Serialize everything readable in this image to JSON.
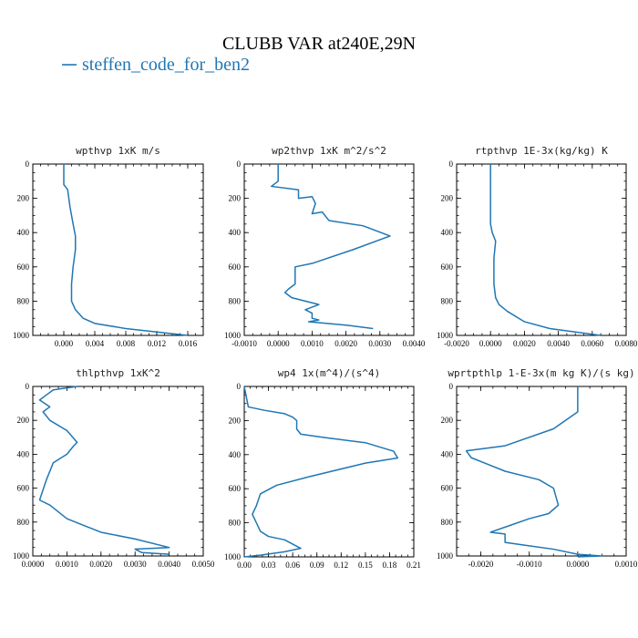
{
  "figure": {
    "title": "CLUBB VAR at240E,29N",
    "legend": {
      "label": "steffen_code_for_ben2",
      "color": "#1f77b4"
    }
  },
  "chart_data": [
    {
      "type": "line",
      "title": "wpthvp  1xK m/s",
      "xlim": [
        -0.004,
        0.018
      ],
      "ylim": [
        1000,
        0
      ],
      "x_ticks": [
        "0.000",
        "0.004",
        "0.008",
        "0.012",
        "0.016"
      ],
      "x_tick_values": [
        0,
        0.004,
        0.008,
        0.012,
        0.016
      ],
      "y_ticks": [
        "0",
        "200",
        "400",
        "600",
        "800",
        "1000"
      ],
      "y_tick_values": [
        0,
        200,
        400,
        600,
        800,
        1000
      ],
      "series": [
        {
          "x": [
            0.0,
            0.0,
            0.0005,
            0.0008,
            0.0012,
            0.0015,
            0.0015,
            0.0012,
            0.001,
            0.001,
            0.0015,
            0.0025,
            0.004,
            0.008,
            0.012,
            0.016
          ],
          "y": [
            0,
            120,
            150,
            250,
            350,
            420,
            500,
            600,
            700,
            800,
            850,
            900,
            930,
            960,
            980,
            1000
          ]
        }
      ]
    },
    {
      "type": "line",
      "title": "wp2thvp  1xK m^2/s^2",
      "xlim": [
        -0.001,
        0.004
      ],
      "ylim": [
        1000,
        0
      ],
      "x_ticks": [
        "-0.0010",
        "0.0000",
        "0.0010",
        "0.0020",
        "0.0030",
        "0.0040"
      ],
      "x_tick_values": [
        -0.001,
        0,
        0.001,
        0.002,
        0.003,
        0.004
      ],
      "y_ticks": [
        "0",
        "200",
        "400",
        "600",
        "800",
        "1000"
      ],
      "y_tick_values": [
        0,
        200,
        400,
        600,
        800,
        1000
      ],
      "series": [
        {
          "x": [
            0.0,
            0.0,
            -0.0002,
            0.0006,
            0.0006,
            0.001,
            0.0011,
            0.001,
            0.0013,
            0.0015,
            0.0025,
            0.0033,
            0.0022,
            0.001,
            0.0005,
            0.0005,
            0.0003,
            0.0002,
            0.0004,
            0.0012,
            0.0008,
            0.001,
            0.001,
            0.0012,
            0.0009,
            0.002,
            0.0028
          ],
          "y": [
            0,
            100,
            130,
            150,
            200,
            190,
            230,
            290,
            280,
            330,
            360,
            420,
            500,
            580,
            600,
            700,
            730,
            750,
            780,
            820,
            850,
            870,
            900,
            910,
            920,
            940,
            960
          ]
        }
      ]
    },
    {
      "type": "line",
      "title": "rtpthvp  1E-3x(kg/kg) K",
      "xlim": [
        -0.002,
        0.008
      ],
      "ylim": [
        1000,
        0
      ],
      "x_ticks": [
        "-0.0020",
        "0.0000",
        "0.0020",
        "0.0040",
        "0.0060",
        "0.0080"
      ],
      "x_tick_values": [
        -0.002,
        0,
        0.002,
        0.004,
        0.006,
        0.008
      ],
      "y_ticks": [
        "0",
        "200",
        "400",
        "600",
        "800",
        "1000"
      ],
      "y_tick_values": [
        0,
        200,
        400,
        600,
        800,
        1000
      ],
      "series": [
        {
          "x": [
            0.0,
            0.0,
            0.0001,
            0.0003,
            0.0002,
            0.0002,
            0.0003,
            0.0005,
            0.001,
            0.002,
            0.0035,
            0.005,
            0.0065
          ],
          "y": [
            0,
            350,
            400,
            450,
            550,
            700,
            780,
            820,
            860,
            920,
            960,
            980,
            1000
          ]
        }
      ]
    },
    {
      "type": "line",
      "title": "thlpthvp  1xK^2",
      "xlim": [
        0.0,
        0.005
      ],
      "ylim": [
        1000,
        0
      ],
      "x_ticks": [
        "0.0000",
        "0.0010",
        "0.0020",
        "0.0030",
        "0.0040",
        "0.0050"
      ],
      "x_tick_values": [
        0,
        0.001,
        0.002,
        0.003,
        0.004,
        0.005
      ],
      "y_ticks": [
        "0",
        "200",
        "400",
        "600",
        "800",
        "1000"
      ],
      "y_tick_values": [
        0,
        200,
        400,
        600,
        800,
        1000
      ],
      "series": [
        {
          "x": [
            0.0013,
            0.0006,
            0.0004,
            0.0002,
            0.0005,
            0.0003,
            0.0005,
            0.001,
            0.0013,
            0.0012,
            0.001,
            0.0006,
            0.0004,
            0.0002,
            0.0005,
            0.001,
            0.0015,
            0.002,
            0.003,
            0.004,
            0.003,
            0.0032,
            0.004
          ],
          "y": [
            0,
            20,
            50,
            80,
            120,
            150,
            200,
            260,
            330,
            350,
            400,
            450,
            550,
            670,
            700,
            780,
            820,
            860,
            900,
            950,
            960,
            980,
            990
          ]
        }
      ]
    },
    {
      "type": "line",
      "title": "wp4  1x(m^4)/(s^4)",
      "xlim": [
        0.0,
        0.21
      ],
      "ylim": [
        1000,
        0
      ],
      "x_ticks": [
        "0.00",
        "0.03",
        "0.06",
        "0.09",
        "0.12",
        "0.15",
        "0.18",
        "0.21"
      ],
      "x_tick_values": [
        0,
        0.03,
        0.06,
        0.09,
        0.12,
        0.15,
        0.18,
        0.21
      ],
      "y_ticks": [
        "0",
        "200",
        "400",
        "600",
        "800",
        "1000"
      ],
      "y_tick_values": [
        0,
        200,
        400,
        600,
        800,
        1000
      ],
      "series": [
        {
          "x": [
            0.0,
            0.005,
            0.025,
            0.05,
            0.06,
            0.065,
            0.065,
            0.07,
            0.1,
            0.15,
            0.185,
            0.19,
            0.15,
            0.08,
            0.04,
            0.02,
            0.015,
            0.01,
            0.015,
            0.02,
            0.03,
            0.05,
            0.07,
            0.05,
            0.02,
            0.0
          ],
          "y": [
            0,
            120,
            140,
            160,
            180,
            200,
            250,
            280,
            300,
            330,
            380,
            420,
            450,
            530,
            580,
            630,
            700,
            750,
            800,
            850,
            880,
            900,
            950,
            970,
            990,
            1000
          ]
        }
      ]
    },
    {
      "type": "line",
      "title": "wprtpthlp  1-E-3x(m kg K)/(s kg)",
      "xlim": [
        -0.0025,
        0.001
      ],
      "ylim": [
        1000,
        0
      ],
      "x_ticks": [
        "-0.0020",
        "-0.0010",
        "0.0000",
        "0.0010"
      ],
      "x_tick_values": [
        -0.002,
        -0.001,
        0,
        0.001
      ],
      "y_ticks": [
        "0",
        "200",
        "400",
        "600",
        "800",
        "1000"
      ],
      "y_tick_values": [
        0,
        200,
        400,
        600,
        800,
        1000
      ],
      "series": [
        {
          "x": [
            0.0,
            0.0,
            -0.0005,
            -0.0015,
            -0.0023,
            -0.0022,
            -0.0015,
            -0.0008,
            -0.0005,
            -0.0004,
            -0.0006,
            -0.001,
            -0.0014,
            -0.0018,
            -0.0015,
            -0.0015,
            -0.001,
            -0.0005,
            0.0,
            0.0005,
            0.0
          ],
          "y": [
            0,
            150,
            250,
            350,
            380,
            420,
            500,
            550,
            600,
            700,
            750,
            780,
            820,
            860,
            870,
            920,
            940,
            960,
            990,
            1000,
            1005
          ]
        }
      ]
    }
  ]
}
